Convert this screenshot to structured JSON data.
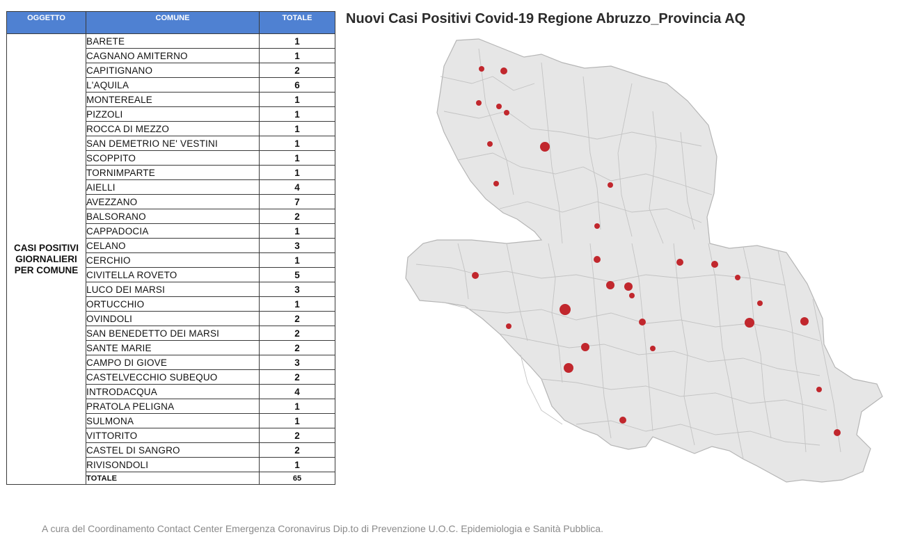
{
  "table": {
    "headers": {
      "subject": "OGGETTO",
      "comune": "COMUNE",
      "totale": "TOTALE"
    },
    "subject": "CASI POSITIVI GIORNALIERI PER COMUNE",
    "rows": [
      {
        "comune": "BARETE",
        "totale": "1"
      },
      {
        "comune": "CAGNANO AMITERNO",
        "totale": "1"
      },
      {
        "comune": "CAPITIGNANO",
        "totale": "2"
      },
      {
        "comune": "L'AQUILA",
        "totale": "6"
      },
      {
        "comune": "MONTEREALE",
        "totale": "1"
      },
      {
        "comune": "PIZZOLI",
        "totale": "1"
      },
      {
        "comune": "ROCCA DI MEZZO",
        "totale": "1"
      },
      {
        "comune": "SAN DEMETRIO NE' VESTINI",
        "totale": "1"
      },
      {
        "comune": "SCOPPITO",
        "totale": "1"
      },
      {
        "comune": "TORNIMPARTE",
        "totale": "1"
      },
      {
        "comune": "AIELLI",
        "totale": "4"
      },
      {
        "comune": "AVEZZANO",
        "totale": "7"
      },
      {
        "comune": "BALSORANO",
        "totale": "2"
      },
      {
        "comune": "CAPPADOCIA",
        "totale": "1"
      },
      {
        "comune": "CELANO",
        "totale": "3"
      },
      {
        "comune": "CERCHIO",
        "totale": "1"
      },
      {
        "comune": "CIVITELLA ROVETO",
        "totale": "5"
      },
      {
        "comune": "LUCO DEI MARSI",
        "totale": "3"
      },
      {
        "comune": "ORTUCCHIO",
        "totale": "1"
      },
      {
        "comune": "OVINDOLI",
        "totale": "2"
      },
      {
        "comune": "SAN BENEDETTO DEI MARSI",
        "totale": "2"
      },
      {
        "comune": "SANTE MARIE",
        "totale": "2"
      },
      {
        "comune": "CAMPO DI GIOVE",
        "totale": "3"
      },
      {
        "comune": "CASTELVECCHIO SUBEQUO",
        "totale": "2"
      },
      {
        "comune": "INTRODACQUA",
        "totale": "4"
      },
      {
        "comune": "PRATOLA PELIGNA",
        "totale": "1"
      },
      {
        "comune": "SULMONA",
        "totale": "1"
      },
      {
        "comune": "VITTORITO",
        "totale": "2"
      },
      {
        "comune": "CASTEL DI SANGRO",
        "totale": "2"
      },
      {
        "comune": "RIVISONDOLI",
        "totale": "1"
      }
    ],
    "total": {
      "label": "TOTALE",
      "value": "65"
    }
  },
  "map": {
    "title": "Nuovi Casi Positivi Covid-19 Regione Abruzzo_Provincia AQ",
    "colors": {
      "land": "#e6e6e6",
      "border": "#b9b9b9",
      "marker": "#c1272d"
    }
  },
  "footer": "A cura del Coordinamento Contact  Center Emergenza Coronavirus  Dip.to di Prevenzione U.O.C. Epidemiologia e Sanità Pubblica."
}
